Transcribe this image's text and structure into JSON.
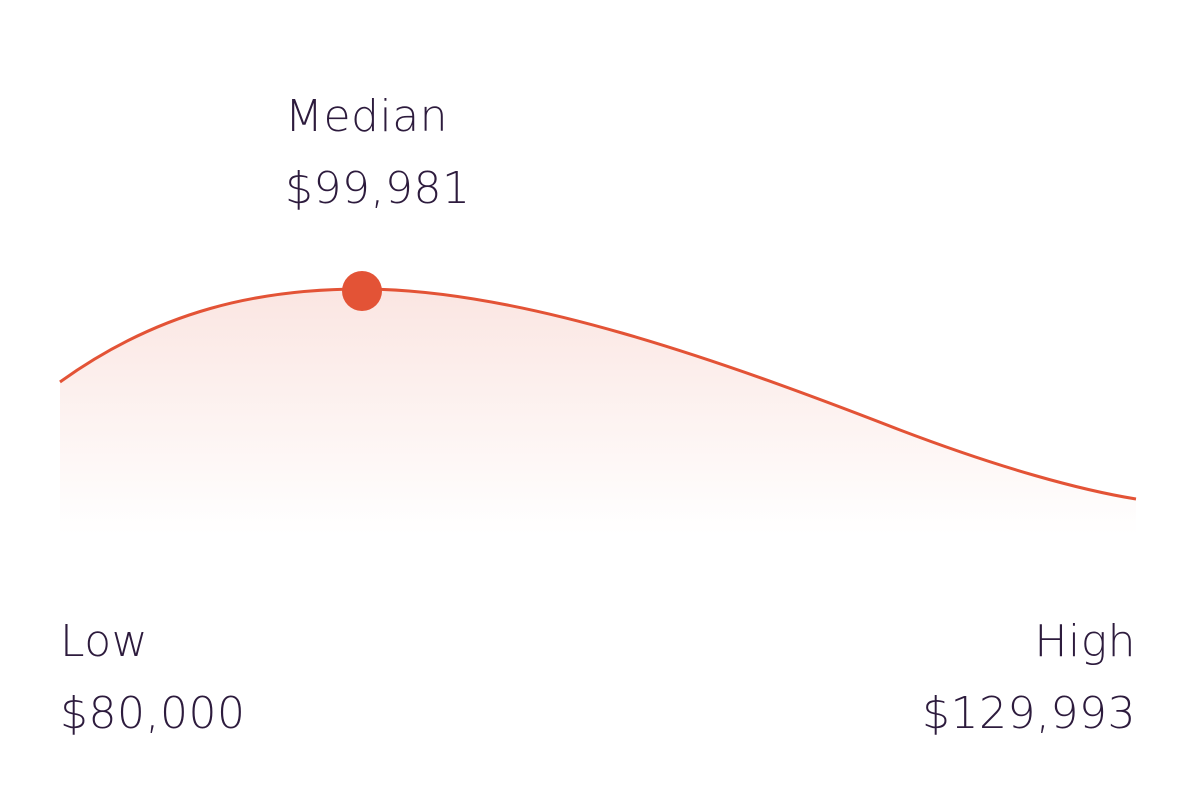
{
  "chart_data": {
    "type": "area",
    "title": "",
    "low": {
      "label": "Low",
      "value_text": "$80,000",
      "value": 80000
    },
    "median": {
      "label": "Median",
      "value_text": "$99,981",
      "value": 99981
    },
    "high": {
      "label": "High",
      "value_text": "$129,993",
      "value": 129993
    },
    "grid": false,
    "colors": {
      "line": "#e35336",
      "marker": "#e35336",
      "fill": "#f9ddd8",
      "text": "#2d1b3d"
    }
  }
}
